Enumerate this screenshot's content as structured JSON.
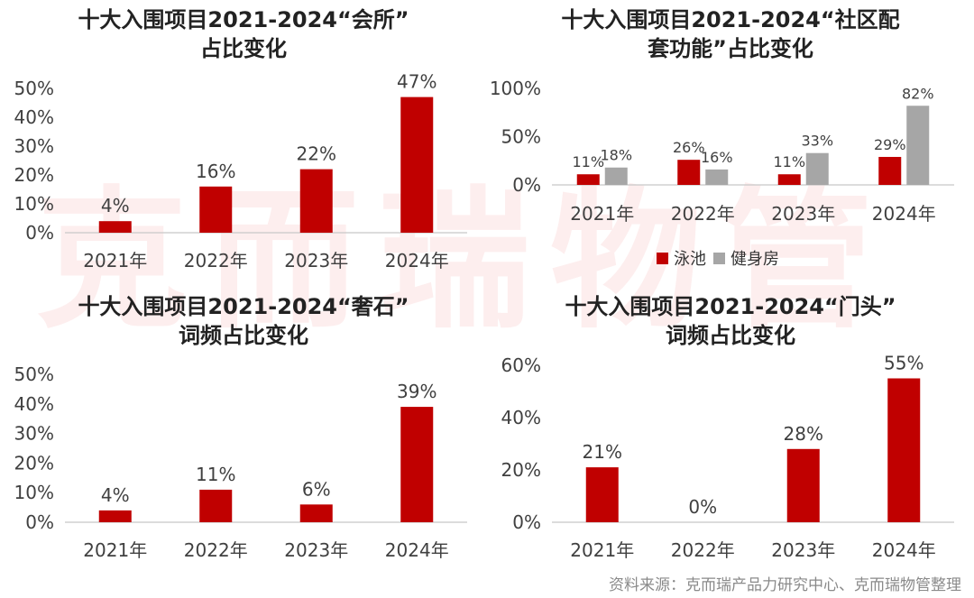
{
  "watermark": "克而瑞物管",
  "source": "资料来源：克而瑞产品力研究中心、克而瑞物管整理",
  "colors": {
    "bar": "#c00000",
    "bar2": "#a6a6a6",
    "axis": "#c8c8c8",
    "text": "#404040"
  },
  "chart_data": [
    {
      "type": "bar",
      "title_line1": "十大入围项目2021-2024“会所”",
      "title_line2": "占比变化",
      "categories": [
        "2021年",
        "2022年",
        "2023年",
        "2024年"
      ],
      "series": [
        {
          "values": [
            4,
            16,
            22,
            47
          ]
        }
      ],
      "value_labels": [
        "4%",
        "16%",
        "22%",
        "47%"
      ],
      "y_ticks": [
        "0%",
        "10%",
        "20%",
        "30%",
        "40%",
        "50%"
      ],
      "ylim": [
        0,
        50
      ]
    },
    {
      "type": "bar",
      "title_line1": "十大入围项目2021-2024“社区配",
      "title_line2": "套功能”占比变化",
      "categories": [
        "2021年",
        "2022年",
        "2023年",
        "2024年"
      ],
      "series": [
        {
          "name": "泳池",
          "values": [
            11,
            26,
            11,
            29
          ],
          "labels": [
            "11%",
            "26%",
            "11%",
            "29%"
          ]
        },
        {
          "name": "健身房",
          "values": [
            18,
            16,
            33,
            82
          ],
          "labels": [
            "18%",
            "16%",
            "33%",
            "82%"
          ]
        }
      ],
      "y_ticks": [
        "0%",
        "50%",
        "100%"
      ],
      "ylim": [
        0,
        100
      ],
      "legend_position": "bottom"
    },
    {
      "type": "bar",
      "title_line1": "十大入围项目2021-2024“奢石”",
      "title_line2": "词频占比变化",
      "categories": [
        "2021年",
        "2022年",
        "2023年",
        "2024年"
      ],
      "series": [
        {
          "values": [
            4,
            11,
            6,
            39
          ]
        }
      ],
      "value_labels": [
        "4%",
        "11%",
        "6%",
        "39%"
      ],
      "y_ticks": [
        "0%",
        "10%",
        "20%",
        "30%",
        "40%",
        "50%"
      ],
      "ylim": [
        0,
        50
      ]
    },
    {
      "type": "bar",
      "title_line1": "十大入围项目2021-2024“门头”",
      "title_line2": "词频占比变化",
      "categories": [
        "2021年",
        "2022年",
        "2023年",
        "2024年"
      ],
      "series": [
        {
          "values": [
            21,
            0,
            28,
            55
          ]
        }
      ],
      "value_labels": [
        "21%",
        "0%",
        "28%",
        "55%"
      ],
      "y_ticks": [
        "0%",
        "20%",
        "40%",
        "60%"
      ],
      "ylim": [
        0,
        60
      ]
    }
  ]
}
